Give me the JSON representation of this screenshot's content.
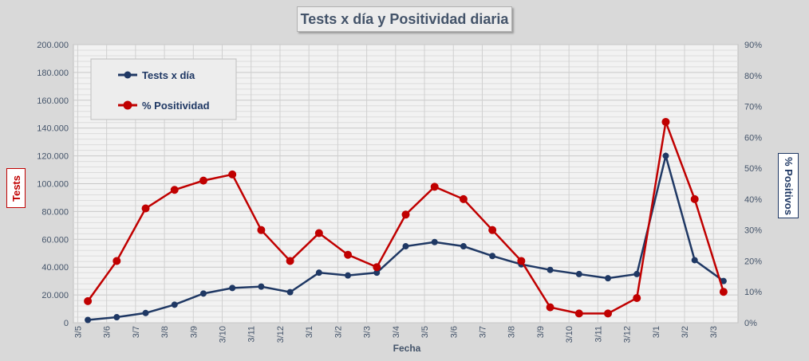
{
  "chart_data": {
    "type": "line",
    "title": "Tests x día y Positividad diaria",
    "xlabel": "Fecha",
    "ylabel": "Tests",
    "y2label": "% Positivos",
    "grid": true,
    "legend_position": "top-left",
    "categories": [
      "3/5",
      "3/6",
      "3/7",
      "3/8",
      "3/9",
      "3/10",
      "3/11",
      "3/12",
      "3/1",
      "3/2",
      "3/3",
      "3/4",
      "3/5",
      "3/6",
      "3/7",
      "3/8",
      "3/9",
      "3/10",
      "3/11",
      "3/12",
      "3/1",
      "3/2",
      "3/3"
    ],
    "y_ticks": [
      "0",
      "20.000",
      "40.000",
      "60.000",
      "80.000",
      "100.000",
      "120.000",
      "140.000",
      "160.000",
      "180.000",
      "200.000"
    ],
    "y2_ticks": [
      "0%",
      "10%",
      "20%",
      "30%",
      "40%",
      "50%",
      "60%",
      "70%",
      "80%",
      "90%"
    ],
    "ylim": [
      0,
      200000
    ],
    "y2lim": [
      0,
      0.9
    ],
    "series": [
      {
        "name": "Tests x día",
        "axis": "left",
        "color": "#1f3864",
        "values": [
          2000,
          4000,
          7000,
          13000,
          21000,
          25000,
          26000,
          22000,
          36000,
          34000,
          36000,
          55000,
          58000,
          55000,
          48000,
          42000,
          38000,
          35000,
          32000,
          35000,
          120000,
          45000,
          30000
        ]
      },
      {
        "name": "% Positividad",
        "axis": "right",
        "color": "#c00000",
        "values": [
          0.07,
          0.2,
          0.37,
          0.43,
          0.46,
          0.48,
          0.3,
          0.2,
          0.29,
          0.22,
          0.18,
          0.35,
          0.44,
          0.4,
          0.3,
          0.2,
          0.05,
          0.03,
          0.03,
          0.08,
          0.65,
          0.4,
          0.1
        ]
      }
    ]
  }
}
